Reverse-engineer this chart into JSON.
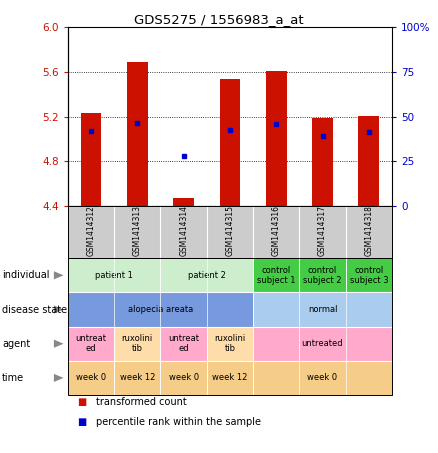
{
  "title": "GDS5275 / 1556983_a_at",
  "samples": [
    "GSM1414312",
    "GSM1414313",
    "GSM1414314",
    "GSM1414315",
    "GSM1414316",
    "GSM1414317",
    "GSM1414318"
  ],
  "red_values": [
    5.23,
    5.69,
    4.47,
    5.54,
    5.61,
    5.19,
    5.21
  ],
  "blue_values": [
    5.07,
    5.14,
    4.85,
    5.08,
    5.13,
    5.03,
    5.06
  ],
  "ylim": [
    4.4,
    6.0
  ],
  "yticks_left": [
    4.4,
    4.8,
    5.2,
    5.6,
    6.0
  ],
  "yticks_right": [
    0,
    25,
    50,
    75,
    100
  ],
  "yticks_right_labels": [
    "0",
    "25",
    "50",
    "75",
    "100%"
  ],
  "bar_color": "#cc1100",
  "dot_color": "#0000cc",
  "annotation_rows": [
    {
      "key": "individual",
      "label": "individual",
      "groups": [
        {
          "span": [
            0,
            1
          ],
          "text": "patient 1",
          "color": "#cceecc"
        },
        {
          "span": [
            2,
            3
          ],
          "text": "patient 2",
          "color": "#cceecc"
        },
        {
          "span": [
            4,
            4
          ],
          "text": "control\nsubject 1",
          "color": "#44cc44"
        },
        {
          "span": [
            5,
            5
          ],
          "text": "control\nsubject 2",
          "color": "#44cc44"
        },
        {
          "span": [
            6,
            6
          ],
          "text": "control\nsubject 3",
          "color": "#44cc44"
        }
      ]
    },
    {
      "key": "disease_state",
      "label": "disease state",
      "groups": [
        {
          "span": [
            0,
            3
          ],
          "text": "alopecia areata",
          "color": "#7799dd"
        },
        {
          "span": [
            4,
            6
          ],
          "text": "normal",
          "color": "#aaccee"
        }
      ]
    },
    {
      "key": "agent",
      "label": "agent",
      "groups": [
        {
          "span": [
            0,
            0
          ],
          "text": "untreat\ned",
          "color": "#ffaacc"
        },
        {
          "span": [
            1,
            1
          ],
          "text": "ruxolini\ntib",
          "color": "#ffddaa"
        },
        {
          "span": [
            2,
            2
          ],
          "text": "untreat\ned",
          "color": "#ffaacc"
        },
        {
          "span": [
            3,
            3
          ],
          "text": "ruxolini\ntib",
          "color": "#ffddaa"
        },
        {
          "span": [
            4,
            6
          ],
          "text": "untreated",
          "color": "#ffaacc"
        }
      ]
    },
    {
      "key": "time",
      "label": "time",
      "groups": [
        {
          "span": [
            0,
            0
          ],
          "text": "week 0",
          "color": "#f5cc88"
        },
        {
          "span": [
            1,
            1
          ],
          "text": "week 12",
          "color": "#f5cc88"
        },
        {
          "span": [
            2,
            2
          ],
          "text": "week 0",
          "color": "#f5cc88"
        },
        {
          "span": [
            3,
            3
          ],
          "text": "week 12",
          "color": "#f5cc88"
        },
        {
          "span": [
            4,
            6
          ],
          "text": "week 0",
          "color": "#f5cc88"
        }
      ]
    }
  ]
}
